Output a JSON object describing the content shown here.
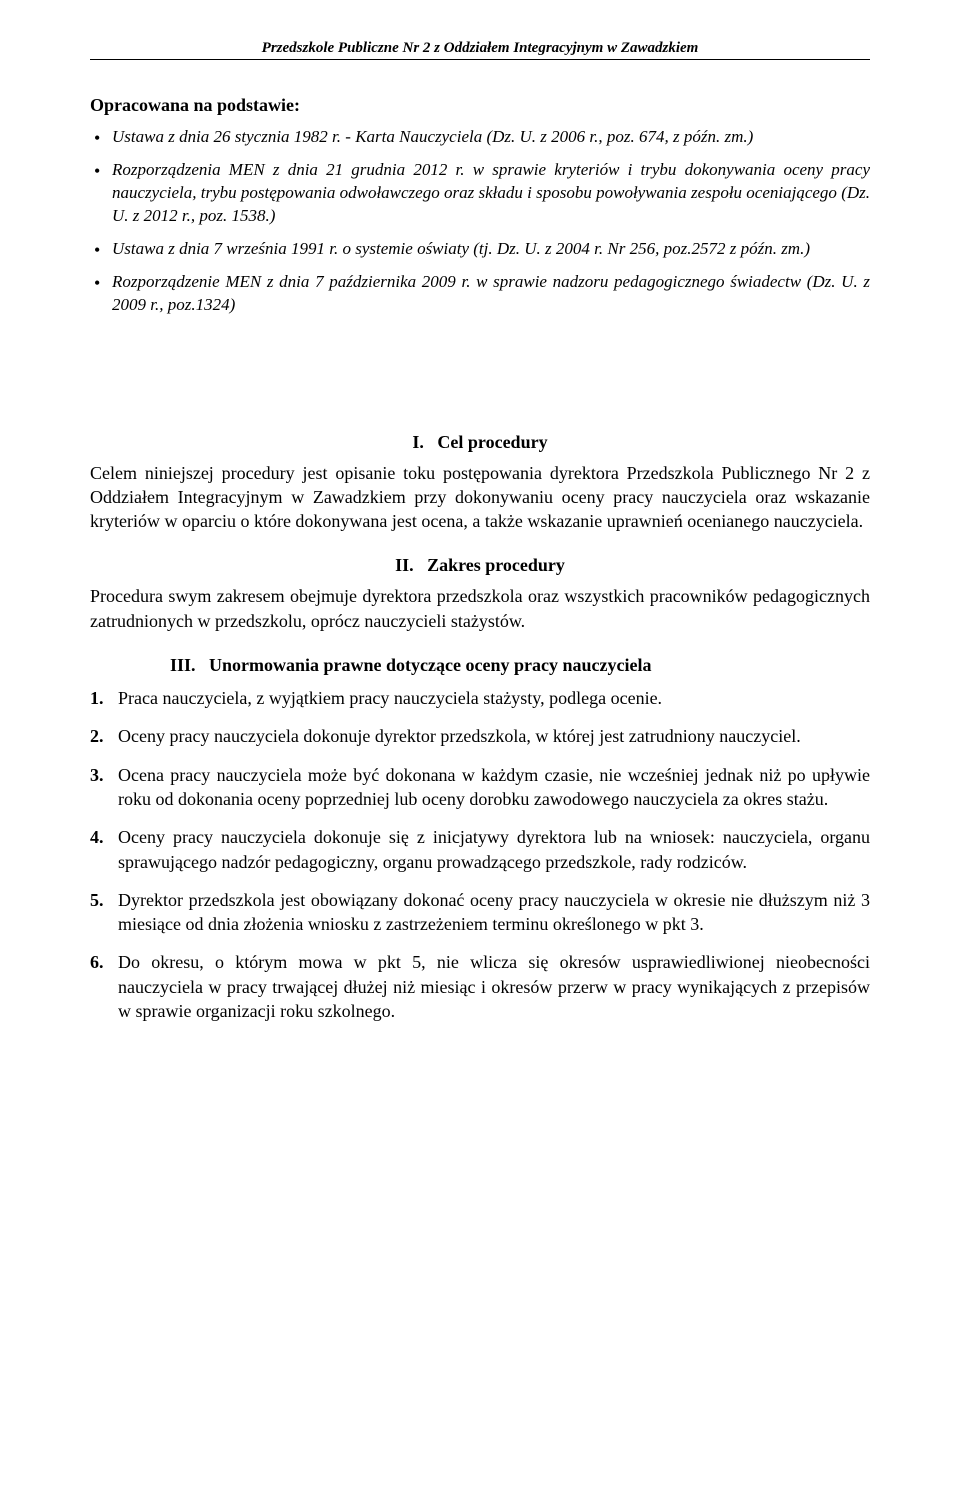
{
  "header": "Przedszkole Publiczne Nr 2 z Oddziałem Integracyjnym w Zawadzkiem",
  "basis_title": "Opracowana na podstawie:",
  "basis_items": [
    "Ustawa z dnia 26 stycznia 1982 r. - Karta Nauczyciela (Dz. U. z 2006 r., poz. 674, z późn. zm.)",
    "Rozporządzenia MEN z dnia 21 grudnia 2012 r. w sprawie kryteriów i trybu dokonywania oceny pracy nauczyciela, trybu postępowania odwoławczego oraz składu i sposobu powoływania zespołu oceniającego (Dz. U. z 2012 r., poz. 1538.)",
    "Ustawa z dnia 7 września 1991 r. o systemie oświaty (tj. Dz. U. z 2004 r. Nr 256, poz.2572 z późn. zm.)",
    "Rozporządzenie MEN z dnia 7 października 2009 r. w sprawie nadzoru pedagogicznego świadectw (Dz. U. z 2009 r., poz.1324)"
  ],
  "section1": {
    "heading": "I.   Cel procedury",
    "body": "Celem niniejszej procedury jest opisanie toku postępowania dyrektora Przedszkola Publicznego Nr 2 z Oddziałem Integracyjnym w Zawadzkiem przy dokonywaniu oceny pracy nauczyciela oraz wskazanie kryteriów w oparciu o które dokonywana jest ocena, a także wskazanie uprawnień ocenianego nauczyciela."
  },
  "section2": {
    "heading": "II.   Zakres procedury",
    "body": "Procedura swym zakresem obejmuje dyrektora przedszkola oraz wszystkich pracowników pedagogicznych zatrudnionych w przedszkolu, oprócz nauczycieli stażystów."
  },
  "section3": {
    "heading": "III.   Unormowania prawne dotyczące oceny pracy nauczyciela",
    "items": [
      "Praca nauczyciela, z wyjątkiem pracy nauczyciela stażysty, podlega ocenie.",
      "Oceny pracy nauczyciela dokonuje dyrektor przedszkola, w której jest zatrudniony nauczyciel.",
      "Ocena pracy nauczyciela może być dokonana w każdym czasie, nie wcześniej jednak niż po upływie roku od dokonania oceny poprzedniej lub oceny dorobku zawodowego nauczyciela za okres stażu.",
      "Oceny pracy nauczyciela dokonuje się z inicjatywy dyrektora lub na wniosek: nauczyciela, organu sprawującego nadzór pedagogiczny, organu prowadzącego przedszkole, rady rodziców.",
      "Dyrektor przedszkola jest obowiązany dokonać oceny pracy nauczyciela w okresie nie dłuższym niż 3 miesiące od dnia złożenia wniosku z zastrzeżeniem terminu określonego w pkt 3.",
      "Do okresu, o którym mowa w pkt 5, nie wlicza się okresów usprawiedliwionej nieobecności nauczyciela w pracy trwającej dłużej niż miesiąc i okresów przerw w pracy wynikających z przepisów w sprawie organizacji roku szkolnego."
    ]
  }
}
